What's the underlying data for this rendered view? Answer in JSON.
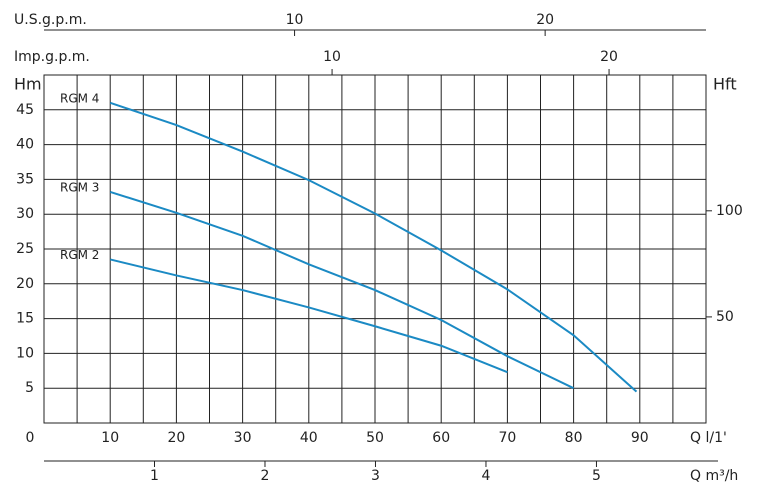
{
  "chart_data": {
    "type": "line",
    "y_label": "Hm",
    "y2_label": "Hft",
    "x_label": "Q l/1'",
    "xlim": [
      0,
      100
    ],
    "xticks": [
      0,
      10,
      20,
      30,
      40,
      50,
      60,
      70,
      80,
      90
    ],
    "x_minor_grid": [
      5,
      15,
      25,
      35,
      45,
      55,
      65,
      75,
      85,
      95
    ],
    "ylim": [
      0,
      50
    ],
    "yticks": [
      5,
      10,
      15,
      20,
      25,
      30,
      35,
      40,
      45
    ],
    "y2lim": [
      0,
      164
    ],
    "y2ticks": [
      50,
      100
    ],
    "grid": true,
    "extra_axes": [
      {
        "label": "U.S.g.p.m.",
        "position": "top",
        "lim": [
          0,
          26.42
        ],
        "ticks": [
          10,
          20
        ]
      },
      {
        "label": "Imp.g.p.m.",
        "position": "top",
        "lim": [
          -0.4,
          23.5
        ],
        "ticks": [
          10,
          20
        ]
      },
      {
        "label": "Q m³/h",
        "position": "bottom",
        "lim": [
          0,
          6.1
        ],
        "ticks": [
          1,
          2,
          3,
          4,
          5
        ]
      }
    ],
    "series": [
      {
        "name": "RGM 4",
        "color": "#1b8ac4",
        "x": [
          10,
          20,
          30,
          40,
          50,
          60,
          70,
          80,
          89.5
        ],
        "values": [
          46,
          42.8,
          39,
          34.9,
          30.1,
          24.8,
          19.2,
          12.6,
          4.5
        ]
      },
      {
        "name": "RGM 3",
        "color": "#1b8ac4",
        "x": [
          10,
          20,
          30,
          40,
          50,
          60,
          70,
          80
        ],
        "values": [
          33.2,
          30.2,
          26.9,
          22.8,
          19.1,
          14.8,
          9.6,
          5
        ]
      },
      {
        "name": "RGM 2",
        "color": "#1b8ac4",
        "x": [
          10,
          20,
          30,
          40,
          50,
          60,
          70
        ],
        "values": [
          23.5,
          21.2,
          19.1,
          16.6,
          13.9,
          11.1,
          7.3
        ]
      }
    ]
  }
}
